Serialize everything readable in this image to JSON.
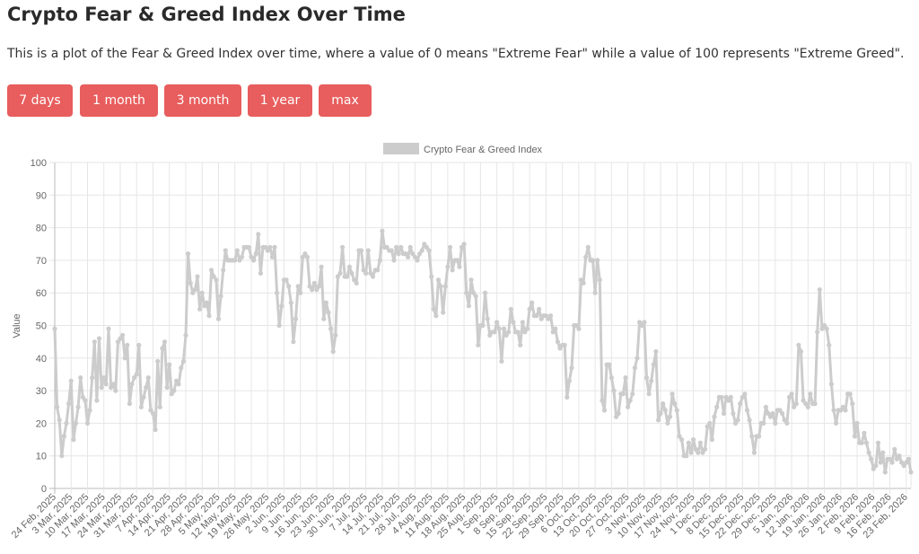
{
  "page": {
    "title": "Crypto Fear & Greed Index Over Time",
    "description": "This is a plot of the Fear & Greed Index over time, where a value of 0 means \"Extreme Fear\" while a value of 100 represents \"Extreme Greed\"."
  },
  "range_buttons": [
    {
      "label": "7 days"
    },
    {
      "label": "1 month"
    },
    {
      "label": "3 month"
    },
    {
      "label": "1 year"
    },
    {
      "label": "max"
    }
  ],
  "colors": {
    "button": "#e85d5d",
    "series": "#cccccc",
    "grid": "#e6e6e6"
  },
  "chart_data": {
    "type": "line",
    "legend": {
      "label": "Crypto Fear & Greed Index",
      "position": "top"
    },
    "ylabel": "Value",
    "xlabel": "",
    "ylim": [
      0,
      100
    ],
    "yticks": [
      0,
      10,
      20,
      30,
      40,
      50,
      60,
      70,
      80,
      90,
      100
    ],
    "grid": true,
    "start_date": "2025-02-24",
    "end_date": "2026-02-25",
    "x_tick_labels": [
      "24 Feb, 2025",
      "3 Mar, 2025",
      "10 Mar, 2025",
      "17 Mar, 2025",
      "24 Mar, 2025",
      "31 Mar, 2025",
      "7 Apr, 2025",
      "14 Apr, 2025",
      "21 Apr, 2025",
      "28 Apr, 2025",
      "5 May, 2025",
      "12 May, 2025",
      "19 May, 2025",
      "26 May, 2025",
      "2 Jun, 2025",
      "9 Jun, 2025",
      "16 Jun, 2025",
      "23 Jun, 2025",
      "30 Jun, 2025",
      "7 Jul, 2025",
      "14 Jul, 2025",
      "21 Jul, 2025",
      "28 Jul, 2025",
      "4 Aug, 2025",
      "11 Aug, 2025",
      "18 Aug, 2025",
      "25 Aug, 2025",
      "1 Sep, 2025",
      "8 Sep, 2025",
      "15 Sep, 2025",
      "22 Sep, 2025",
      "29 Sep, 2025",
      "6 Oct, 2025",
      "13 Oct, 2025",
      "20 Oct, 2025",
      "27 Oct, 2025",
      "3 Nov, 2025",
      "10 Nov, 2025",
      "17 Nov, 2025",
      "24 Nov, 2025",
      "1 Dec, 2025",
      "8 Dec, 2025",
      "15 Dec, 2025",
      "22 Dec, 2025",
      "29 Dec, 2025",
      "5 Jan, 2026",
      "12 Jan, 2026",
      "19 Jan, 2026",
      "26 Jan, 2026",
      "2 Feb, 2026",
      "9 Feb, 2026",
      "16 Feb, 2026",
      "23 Feb, 2026"
    ],
    "series": [
      {
        "name": "Crypto Fear & Greed Index",
        "values": [
          49,
          25,
          21,
          10,
          16,
          20,
          26,
          33,
          15,
          20,
          25,
          34,
          28,
          27,
          20,
          24,
          34,
          45,
          27,
          46,
          31,
          34,
          32,
          49,
          31,
          32,
          30,
          45,
          46,
          47,
          40,
          44,
          26,
          32,
          34,
          35,
          44,
          25,
          28,
          31,
          34,
          24,
          23,
          18,
          39,
          25,
          43,
          45,
          31,
          38,
          29,
          30,
          33,
          32,
          37,
          39,
          47,
          72,
          63,
          60,
          61,
          65,
          55,
          60,
          56,
          57,
          53,
          67,
          65,
          64,
          52,
          59,
          67,
          73,
          70,
          70,
          70,
          70,
          73,
          70,
          71,
          74,
          74,
          74,
          71,
          70,
          72,
          78,
          66,
          74,
          74,
          73,
          74,
          71,
          74,
          60,
          50,
          56,
          64,
          64,
          62,
          57,
          45,
          52,
          62,
          60,
          71,
          72,
          71,
          62,
          61,
          63,
          61,
          62,
          68,
          52,
          57,
          54,
          49,
          42,
          47,
          65,
          66,
          74,
          65,
          65,
          68,
          66,
          64,
          63,
          73,
          73,
          67,
          66,
          73,
          66,
          65,
          67,
          67,
          70,
          79,
          74,
          74,
          73,
          73,
          70,
          74,
          72,
          74,
          72,
          72,
          71,
          74,
          72,
          71,
          70,
          72,
          73,
          75,
          74,
          73,
          65,
          55,
          53,
          64,
          62,
          54,
          62,
          68,
          74,
          67,
          70,
          70,
          68,
          74,
          75,
          60,
          56,
          64,
          60,
          59,
          44,
          50,
          50,
          60,
          52,
          47,
          48,
          48,
          51,
          49,
          39,
          49,
          47,
          48,
          55,
          51,
          48,
          48,
          44,
          51,
          48,
          49,
          55,
          57,
          53,
          53,
          55,
          52,
          53,
          53,
          52,
          53,
          48,
          49,
          45,
          43,
          44,
          44,
          28,
          33,
          37,
          50,
          50,
          49,
          64,
          63,
          71,
          74,
          70,
          70,
          60,
          70,
          64,
          27,
          24,
          38,
          38,
          34,
          30,
          22,
          23,
          29,
          29,
          34,
          25,
          27,
          29,
          37,
          40,
          51,
          50,
          51,
          34,
          29,
          33,
          38,
          42,
          21,
          23,
          26,
          24,
          20,
          22,
          29,
          26,
          24,
          16,
          15,
          10,
          10,
          14,
          11,
          15,
          12,
          11,
          14,
          11,
          12,
          19,
          20,
          15,
          22,
          25,
          28,
          28,
          23,
          28,
          27,
          28,
          23,
          20,
          21,
          26,
          28,
          29,
          24,
          21,
          16,
          11,
          16,
          16,
          20,
          20,
          25,
          23,
          22,
          23,
          20,
          24,
          24,
          23,
          21,
          20,
          28,
          29,
          25,
          26,
          44,
          42,
          27,
          26,
          25,
          29,
          26,
          26,
          48,
          61,
          49,
          50,
          49,
          44,
          32,
          24,
          20,
          24,
          24,
          25,
          24,
          29,
          29,
          26,
          16,
          20,
          14,
          14,
          17,
          14,
          11,
          9,
          6,
          7,
          14,
          8,
          11,
          5,
          9,
          9,
          8,
          12,
          9,
          10,
          8,
          7,
          8,
          9,
          5
        ]
      }
    ]
  }
}
